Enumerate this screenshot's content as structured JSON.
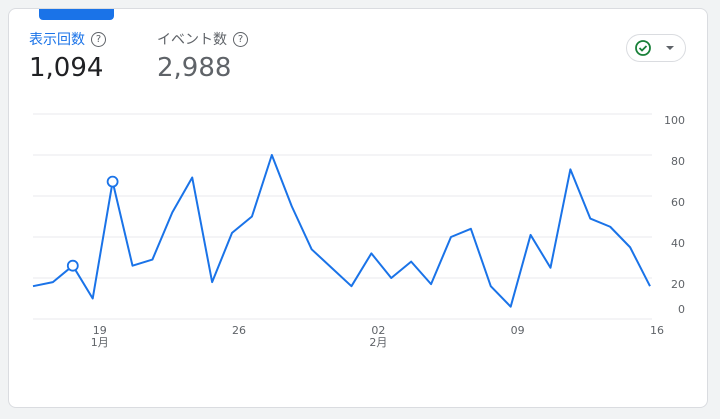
{
  "header": {
    "metrics": [
      {
        "label": "表示回数",
        "value": "1,094"
      },
      {
        "label": "イベント数",
        "value": "2,988"
      }
    ]
  },
  "chart_data": {
    "type": "line",
    "categories": [
      null,
      null,
      null,
      "19",
      null,
      null,
      null,
      null,
      null,
      null,
      "26",
      null,
      null,
      null,
      null,
      null,
      null,
      "02",
      null,
      null,
      null,
      null,
      null,
      null,
      "09",
      null,
      null,
      null,
      null,
      null,
      null,
      "16"
    ],
    "month_labels": [
      null,
      null,
      null,
      "1月",
      null,
      null,
      null,
      null,
      null,
      null,
      null,
      null,
      null,
      null,
      null,
      null,
      null,
      "2月",
      null,
      null,
      null,
      null,
      null,
      null,
      null,
      null,
      null,
      null,
      null,
      null,
      null,
      null
    ],
    "series": [
      {
        "color": "#1a73e8",
        "values": [
          16,
          18,
          26,
          10,
          67,
          26,
          29,
          52,
          69,
          18,
          42,
          50,
          80,
          55,
          34,
          25,
          16,
          32,
          20,
          28,
          17,
          40,
          44,
          16,
          6,
          41,
          25,
          73,
          49,
          45,
          35,
          16
        ]
      }
    ],
    "marked_points": [
      2,
      4
    ],
    "ylim": [
      0,
      100
    ],
    "yticks": [
      0,
      20,
      40,
      60,
      80,
      100
    ],
    "grid": true,
    "y_axis_side": "right"
  }
}
